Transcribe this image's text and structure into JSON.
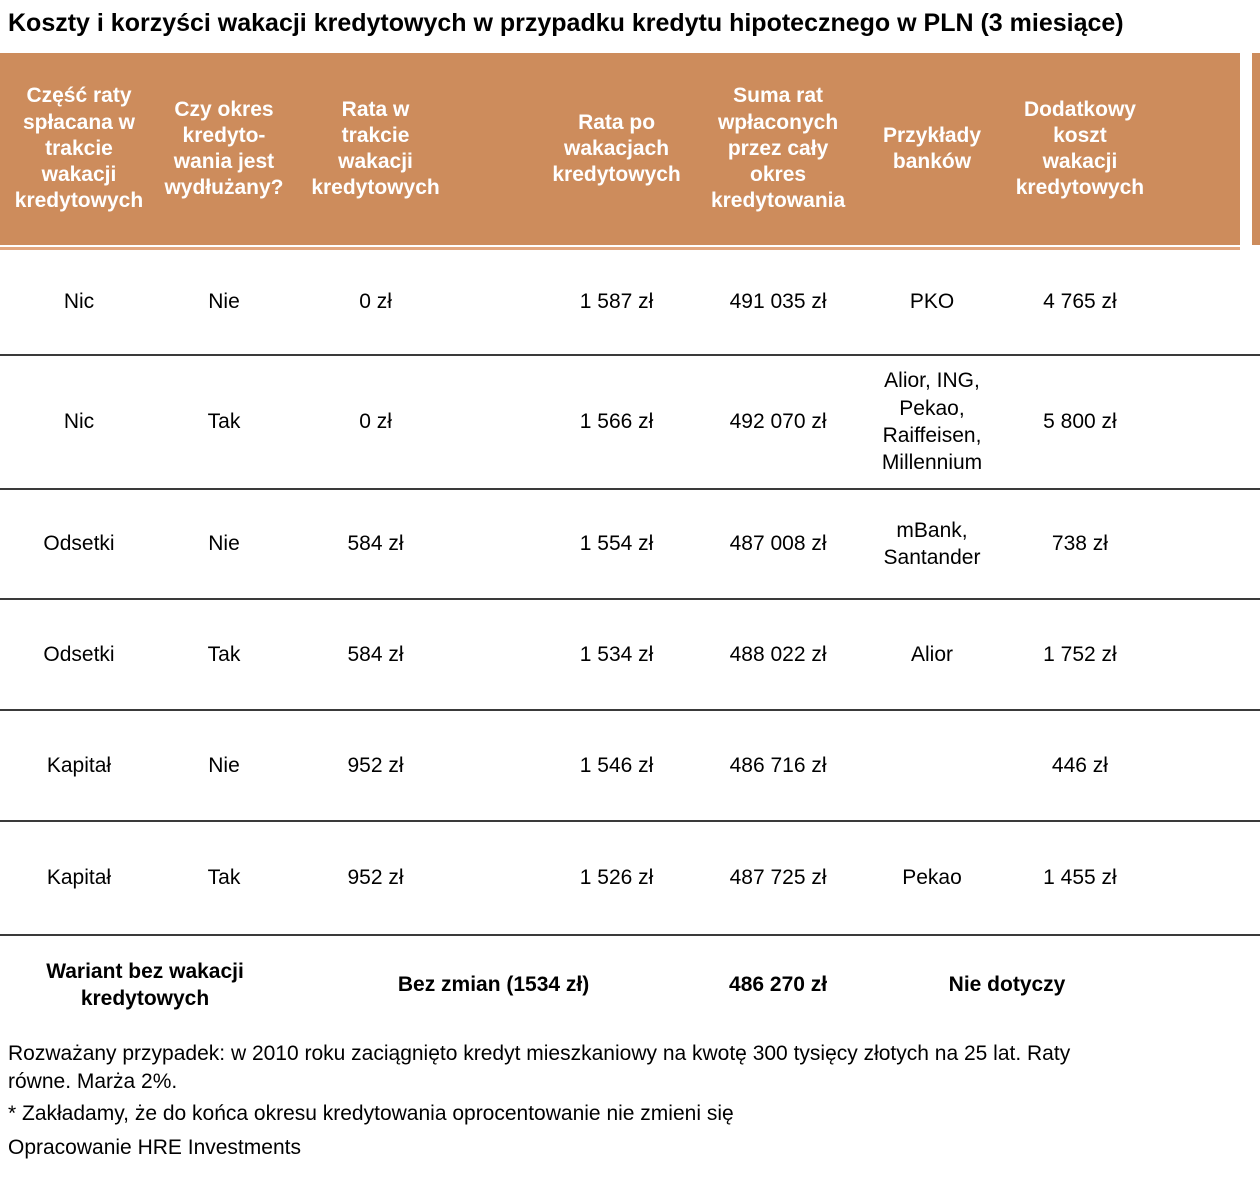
{
  "title": "Koszty i korzyści wakacji kredytowych w przypadku kredytu hipotecznego w PLN (3 miesiące)",
  "header": {
    "columns": [
      "Część raty\nspłacana w\ntrakcie\nwakacji\nkredytowych",
      "Czy okres\nkredyto-\nwania jest\nwydłużany?",
      "Rata w\ntrakcie\nwakacji\nkredytowych",
      "Rata po\nwakacjach\nkredytowych",
      "Suma rat\nwpłaconych\nprzez cały\nokres\nkredytowania",
      "Przykłady\nbanków",
      "Dodatkowy\nkoszt\nwakacji\nkredytowych"
    ]
  },
  "rows": [
    {
      "part": "Nic",
      "extended": "Nie",
      "rate_during": "0 zł",
      "rate_after": "1 587 zł",
      "total_sum": "491 035 zł",
      "banks": "PKO",
      "extra_cost": "4 765 zł"
    },
    {
      "part": "Nic",
      "extended": "Tak",
      "rate_during": "0 zł",
      "rate_after": "1 566 zł",
      "total_sum": "492 070 zł",
      "banks": "Alior, ING,\nPekao,\nRaiffeisen,\nMillennium",
      "extra_cost": "5 800 zł"
    },
    {
      "part": "Odsetki",
      "extended": "Nie",
      "rate_during": "584 zł",
      "rate_after": "1 554 zł",
      "total_sum": "487 008 zł",
      "banks": "mBank,\nSantander",
      "extra_cost": "738 zł"
    },
    {
      "part": "Odsetki",
      "extended": "Tak",
      "rate_during": "584 zł",
      "rate_after": "1 534 zł",
      "total_sum": "488 022 zł",
      "banks": "Alior",
      "extra_cost": "1 752 zł"
    },
    {
      "part": "Kapitał",
      "extended": "Nie",
      "rate_during": "952 zł",
      "rate_after": "1 546 zł",
      "total_sum": "486 716 zł",
      "banks": "",
      "extra_cost": "446 zł"
    },
    {
      "part": "Kapitał",
      "extended": "Tak",
      "rate_during": "952 zł",
      "rate_after": "1 526 zł",
      "total_sum": "487 725 zł",
      "banks": "Pekao",
      "extra_cost": "1 455 zł"
    }
  ],
  "summary": {
    "label": "Wariant bez wakacji\nkredytowych",
    "rate": "Bez zmian (1534 zł)",
    "total_sum": "486 270 zł",
    "applies": "Nie dotyczy"
  },
  "footnotes": {
    "case": "Rozważany przypadek: w 2010 roku zaciągnięto kredyt mieszkaniowy na kwotę 300 tysięcy złotych na 25 lat. Raty\nrówne. Marża 2%.",
    "assumption": "* Zakładamy, że do końca okresu kredytowania oprocentowanie nie zmieni się",
    "source": "Opracowanie HRE Investments"
  },
  "colors": {
    "header_bg": "#CD8C5C",
    "header_text": "#FFFFFF",
    "header_underline": "#E2A67E",
    "row_divider": "#3A3A3A",
    "text": "#000000"
  }
}
